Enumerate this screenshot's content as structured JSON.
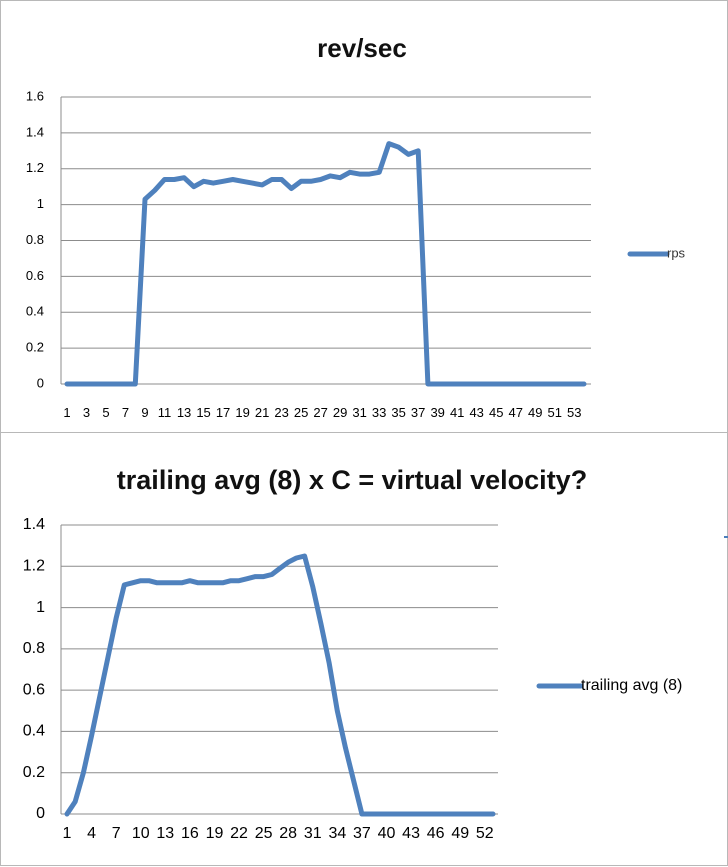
{
  "chart_data": [
    {
      "type": "line",
      "title": "rev/sec",
      "xlabel": "",
      "ylabel": "",
      "ylim": [
        0,
        1.6
      ],
      "yticks": [
        "0",
        "0.2",
        "0.4",
        "0.6",
        "0.8",
        "1",
        "1.2",
        "1.4",
        "1.6"
      ],
      "x_tick_labels": [
        "1",
        "3",
        "5",
        "7",
        "9",
        "11",
        "13",
        "15",
        "17",
        "19",
        "21",
        "23",
        "25",
        "27",
        "29",
        "31",
        "33",
        "35",
        "37",
        "39",
        "41",
        "43",
        "45",
        "47",
        "49",
        "51",
        "53"
      ],
      "x": [
        1,
        2,
        3,
        4,
        5,
        6,
        7,
        8,
        9,
        10,
        11,
        12,
        13,
        14,
        15,
        16,
        17,
        18,
        19,
        20,
        21,
        22,
        23,
        24,
        25,
        26,
        27,
        28,
        29,
        30,
        31,
        32,
        33,
        34,
        35,
        36,
        37,
        38,
        39,
        40,
        41,
        42,
        43,
        44,
        45,
        46,
        47,
        48,
        49,
        50,
        51,
        52,
        53,
        54
      ],
      "series": [
        {
          "name": "rps",
          "color": "#4f81bd",
          "values": [
            0,
            0,
            0,
            0,
            0,
            0,
            0,
            0,
            1.03,
            1.08,
            1.14,
            1.14,
            1.15,
            1.1,
            1.13,
            1.12,
            1.13,
            1.14,
            1.13,
            1.12,
            1.11,
            1.14,
            1.14,
            1.09,
            1.13,
            1.13,
            1.14,
            1.16,
            1.15,
            1.18,
            1.17,
            1.17,
            1.18,
            1.34,
            1.32,
            1.28,
            1.3,
            0,
            0,
            0,
            0,
            0,
            0,
            0,
            0,
            0,
            0,
            0,
            0,
            0,
            0,
            0,
            0,
            0
          ]
        }
      ],
      "legend": "right",
      "grid": true
    },
    {
      "type": "line",
      "title": "trailing avg (8)  x C = virtual velocity?",
      "xlabel": "",
      "ylabel": "",
      "ylim": [
        0,
        1.4
      ],
      "yticks": [
        "0",
        "0.2",
        "0.4",
        "0.6",
        "0.8",
        "1",
        "1.2",
        "1.4"
      ],
      "x_tick_labels": [
        "1",
        "4",
        "7",
        "10",
        "13",
        "16",
        "19",
        "22",
        "25",
        "28",
        "31",
        "34",
        "37",
        "40",
        "43",
        "46",
        "49",
        "52"
      ],
      "x": [
        1,
        2,
        3,
        4,
        5,
        6,
        7,
        8,
        9,
        10,
        11,
        12,
        13,
        14,
        15,
        16,
        17,
        18,
        19,
        20,
        21,
        22,
        23,
        24,
        25,
        26,
        27,
        28,
        29,
        30,
        31,
        32,
        33,
        34,
        35,
        36,
        37,
        38,
        39,
        40,
        41,
        42,
        43,
        44,
        45,
        46,
        47,
        48,
        49,
        50,
        51,
        52,
        53
      ],
      "series": [
        {
          "name": "trailing avg (8)",
          "color": "#4f81bd",
          "values": [
            0,
            0.06,
            0.2,
            0.38,
            0.57,
            0.76,
            0.95,
            1.11,
            1.12,
            1.13,
            1.13,
            1.12,
            1.12,
            1.12,
            1.12,
            1.13,
            1.12,
            1.12,
            1.12,
            1.12,
            1.13,
            1.13,
            1.14,
            1.15,
            1.15,
            1.16,
            1.19,
            1.22,
            1.24,
            1.25,
            1.1,
            0.92,
            0.73,
            0.5,
            0.32,
            0.16,
            0,
            0,
            0,
            0,
            0,
            0,
            0,
            0,
            0,
            0,
            0,
            0,
            0,
            0,
            0,
            0,
            0
          ]
        }
      ],
      "legend": "right",
      "grid": true
    }
  ]
}
